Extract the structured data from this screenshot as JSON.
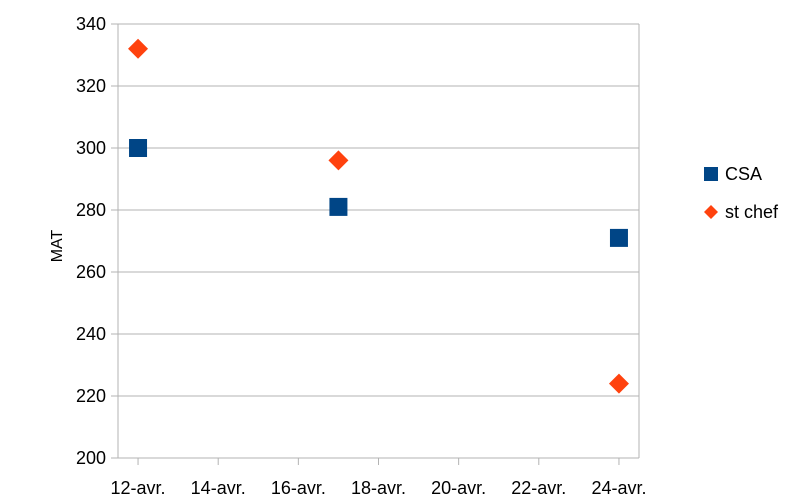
{
  "chart_data": {
    "type": "scatter",
    "title": "",
    "xlabel": "",
    "ylabel": "MAT",
    "ylim": [
      200,
      340
    ],
    "yticks": [
      200,
      220,
      240,
      260,
      280,
      300,
      320,
      340
    ],
    "xticks": [
      "12-avr.",
      "14-avr.",
      "16-avr.",
      "18-avr.",
      "20-avr.",
      "22-avr.",
      "24-avr."
    ],
    "xtick_dates": [
      "12-04",
      "14-04",
      "16-04",
      "18-04",
      "20-04",
      "22-04",
      "24-04"
    ],
    "grid": "horizontal",
    "legend_position": "right",
    "series": [
      {
        "name": "CSA",
        "marker": "square",
        "color": "#004586",
        "x": [
          "12-04",
          "17-04",
          "24-04"
        ],
        "y": [
          300,
          281,
          271
        ]
      },
      {
        "name": "st chef",
        "marker": "diamond",
        "color": "#ff420e",
        "x": [
          "12-04",
          "17-04",
          "24-04"
        ],
        "y": [
          332,
          296,
          224
        ]
      }
    ]
  }
}
